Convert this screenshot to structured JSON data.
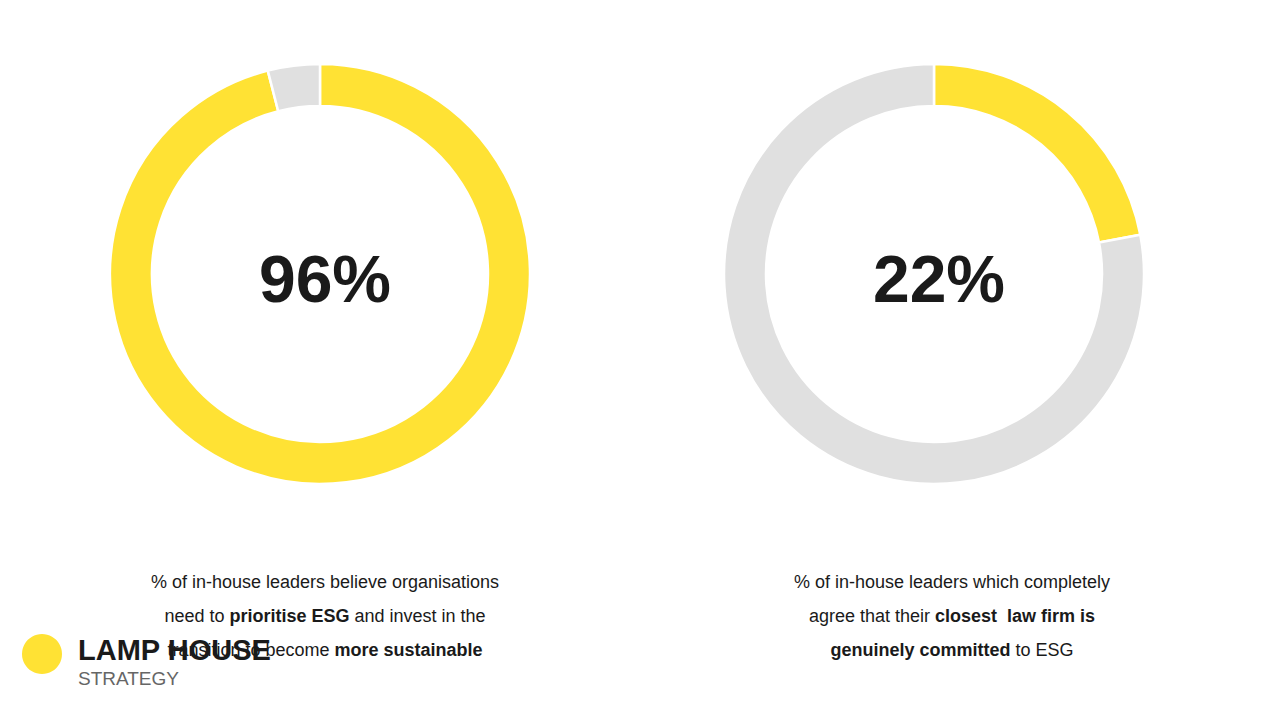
{
  "chart_data": [
    {
      "type": "pie",
      "values": [
        96,
        4
      ],
      "colors": [
        "#FFE234",
        "#E0E0E0"
      ],
      "value_labels": [
        "96%",
        null
      ],
      "annotations": [
        [
          {
            "text": "% of in-house leaders believe organisations",
            "bold": false
          }
        ],
        [
          {
            "text": "need to ",
            "bold": false
          },
          {
            "text": "prioritise ESG",
            "bold": true
          },
          {
            "text": " and invest in the",
            "bold": false
          }
        ],
        [
          {
            "text": "transition to become ",
            "bold": false
          },
          {
            "text": "more sustainable",
            "bold": true
          }
        ]
      ]
    },
    {
      "type": "pie",
      "values": [
        22,
        78
      ],
      "colors": [
        "#FFE234",
        "#E0E0E0"
      ],
      "value_labels": [
        "22%",
        null
      ],
      "annotations": [
        [
          {
            "text": "% of in-house leaders which completely",
            "bold": false
          }
        ],
        [
          {
            "text": "agree that their ",
            "bold": false
          },
          {
            "text": "closest  law firm is",
            "bold": true
          }
        ],
        [
          {
            "text": "genuinely committed",
            "bold": true
          },
          {
            "text": " to ESG",
            "bold": false
          }
        ]
      ]
    }
  ],
  "annotations": [
    [
      {
        "text": "LAMP HOUSE",
        "bold": true
      }
    ],
    [
      {
        "text": "STRATEGY",
        "bold": false
      }
    ]
  ]
}
